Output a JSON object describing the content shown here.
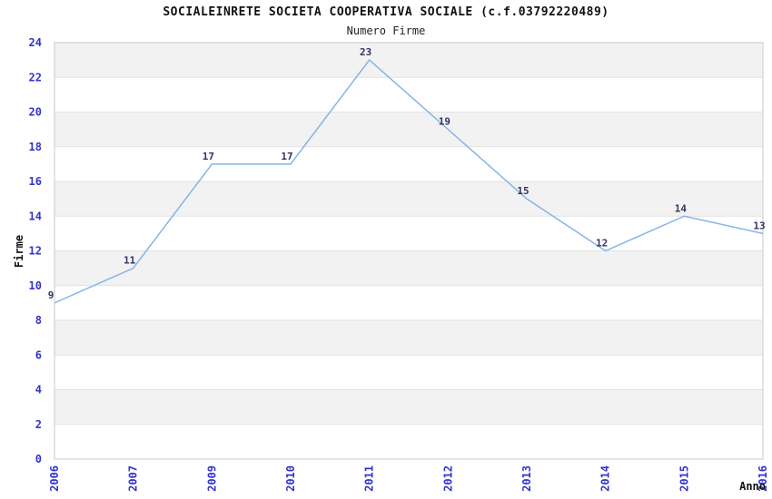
{
  "chart_data": {
    "type": "line",
    "title": "SOCIALEINRETE SOCIETA COOPERATIVA SOCIALE (c.f.03792220489)",
    "subtitle": "Numero Firme",
    "xlabel": "Anno",
    "ylabel": "Firme",
    "categories": [
      "2006",
      "2007",
      "2009",
      "2010",
      "2011",
      "2012",
      "2013",
      "2014",
      "2015",
      "2016"
    ],
    "values": [
      9,
      11,
      17,
      17,
      23,
      19,
      15,
      12,
      14,
      13
    ],
    "point_labels": [
      "9",
      "11",
      "17",
      "17",
      "23",
      "19",
      "15",
      "12",
      "14",
      "13"
    ],
    "y_ticks": [
      0,
      2,
      4,
      6,
      8,
      10,
      12,
      14,
      16,
      18,
      20,
      22,
      24
    ],
    "ylim": [
      0,
      24
    ],
    "grid": "horizontal-bands",
    "legend": "none",
    "colors": {
      "line": "#85b4e6",
      "tick_label": "#3333cc",
      "data_label": "#333366",
      "band": "#f2f2f2",
      "band_alt": "#ffffff",
      "gridline": "#e2e2e2",
      "plot_border": "#c9c9c9",
      "title": "#111111",
      "axis_title": "#111111",
      "background": "#ffffff"
    }
  }
}
